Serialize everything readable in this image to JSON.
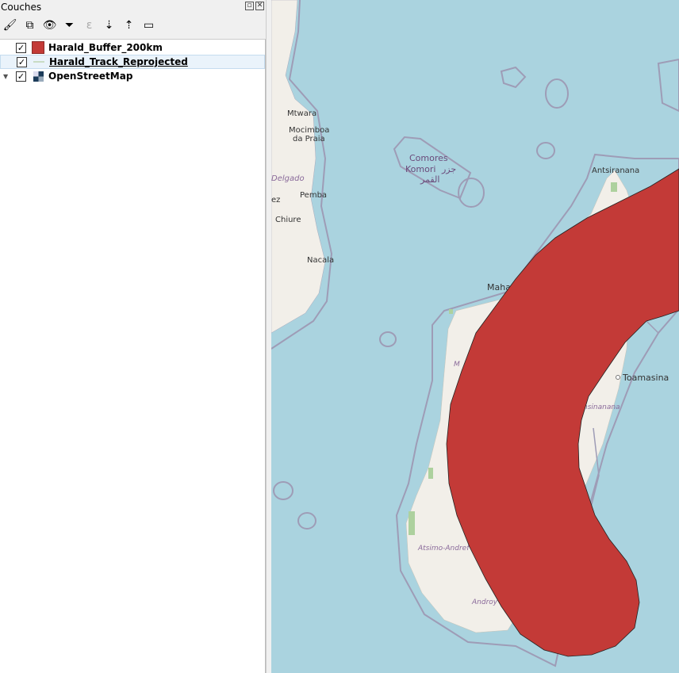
{
  "panel": {
    "title": "Couches",
    "toolbar": [
      {
        "name": "style-manager-icon",
        "glyph": "🖌"
      },
      {
        "name": "add-group-icon",
        "glyph": "⧉"
      },
      {
        "name": "visibility-icon",
        "glyph": "👁"
      },
      {
        "name": "filter-icon",
        "glyph": "⏷"
      },
      {
        "name": "expression-filter-icon",
        "glyph": "ε"
      },
      {
        "name": "expand-all-icon",
        "glyph": "⇣"
      },
      {
        "name": "collapse-all-icon",
        "glyph": "⇡"
      },
      {
        "name": "remove-layer-icon",
        "glyph": "▭"
      }
    ],
    "layers": [
      {
        "name": "Harald_Buffer_200km",
        "checked": true,
        "symbol_color": "#c33a37"
      },
      {
        "name": "Harald_Track_Reprojected",
        "checked": true,
        "symbol_color": "#c9dcc4",
        "selected": true
      },
      {
        "name": "OpenStreetMap",
        "checked": true,
        "expanded": true
      }
    ]
  },
  "map": {
    "colors": {
      "water": "#aad3df",
      "land": "#f2efe9",
      "buffer": "#c33a37",
      "boundary": "#9e9cb6"
    },
    "labels": {
      "mtwara": "Mtwara",
      "mocimboa1": "Mocimboa",
      "mocimboa2": "da Praia",
      "delgado": "Delgado",
      "pemba": "Pemba",
      "chiure": "Chiure",
      "nacala": "Nacala",
      "ez": "ez",
      "comores": "Comores",
      "komori": "Komori",
      "arabic1": "جزر",
      "arabic2": "القمر",
      "antsiranana": "Antsiranana",
      "mahajanga": "Maha",
      "toamasina": "Toamasina",
      "atsinanana": "nsinanana",
      "atsimo": "Atsimo-Andref",
      "androy": "Androy",
      "m": "M"
    }
  }
}
